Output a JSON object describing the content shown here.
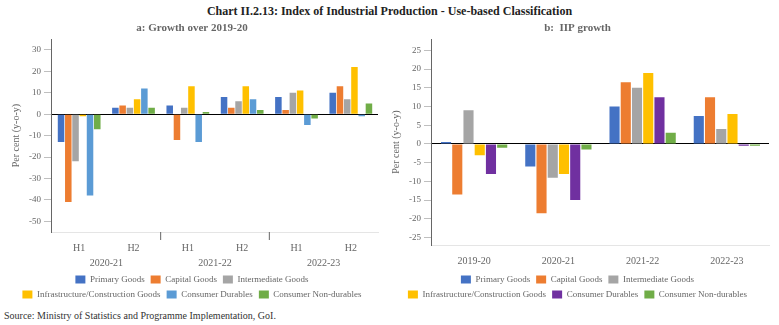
{
  "title": "Chart II.2.13: Index of Industrial Production - Use-based Classification",
  "annotations": [
    "Source: Ministry of Statistics and Programme Implementation, GoI."
  ],
  "chart_data": [
    {
      "type": "bar",
      "title": "a: Growth over 2019-20",
      "ylabel": "Per cent (y-o-y)",
      "categories": [
        "H1",
        "H2",
        "H1",
        "H2",
        "H1",
        "H2"
      ],
      "annotations": [
        "2020-21",
        "2021-22",
        "2022-23"
      ],
      "series": [
        {
          "name": "Primary Goods",
          "color": "#4472C4",
          "values": [
            -13,
            3,
            4,
            8,
            8,
            10
          ]
        },
        {
          "name": "Capital Goods",
          "color": "#ED7D31",
          "values": [
            -41,
            4,
            -12,
            3,
            2,
            13
          ]
        },
        {
          "name": "Intermediate Goods",
          "color": "#A5A5A5",
          "values": [
            -22,
            3,
            3,
            6,
            10,
            7
          ]
        },
        {
          "name": "Infrastructure/Construction Goods",
          "color": "#FFC000",
          "values": [
            -1,
            7,
            13,
            13,
            11,
            22
          ]
        },
        {
          "name": "Consumer Durables",
          "color": "#5B9BD5",
          "values": [
            -38,
            12,
            -13,
            7,
            -5,
            -1
          ]
        },
        {
          "name": "Consumer Non-durables",
          "color": "#70AD47",
          "values": [
            -7,
            3,
            1,
            2,
            -2,
            5
          ]
        }
      ],
      "ylim": [
        -55,
        35
      ],
      "yticks": [
        -50,
        -40,
        -30,
        -20,
        -10,
        0,
        10,
        20,
        30
      ],
      "grid": false,
      "legend": "bottom"
    },
    {
      "type": "bar",
      "title": "b:  IIP growth",
      "ylabel": "Per cent (y-o-y)",
      "categories": [
        "2019-20",
        "2020-21",
        "2021-22",
        "2022-23"
      ],
      "series": [
        {
          "name": "Primary Goods",
          "color": "#4472C4",
          "values": [
            0.5,
            -6,
            10,
            7.5
          ]
        },
        {
          "name": "Capital Goods",
          "color": "#ED7D31",
          "values": [
            -13.5,
            -18.5,
            16.5,
            12.5
          ]
        },
        {
          "name": "Intermediate Goods",
          "color": "#A5A5A5",
          "values": [
            9,
            -9,
            15,
            4
          ]
        },
        {
          "name": "Infrastructure/Construction Goods",
          "color": "#FFC000",
          "values": [
            -3,
            -8,
            19,
            8
          ]
        },
        {
          "name": "Consumer Durables",
          "color": "#7030A0",
          "values": [
            -8,
            -15,
            12.5,
            -0.5
          ]
        },
        {
          "name": "Consumer Non-durables",
          "color": "#70AD47",
          "values": [
            -1,
            -1.5,
            3,
            -0.5
          ]
        }
      ],
      "ylim": [
        -27,
        28
      ],
      "yticks": [
        -25,
        -20,
        -15,
        -10,
        -5,
        0,
        5,
        10,
        15,
        20,
        25
      ],
      "grid": false,
      "legend": "bottom"
    }
  ]
}
